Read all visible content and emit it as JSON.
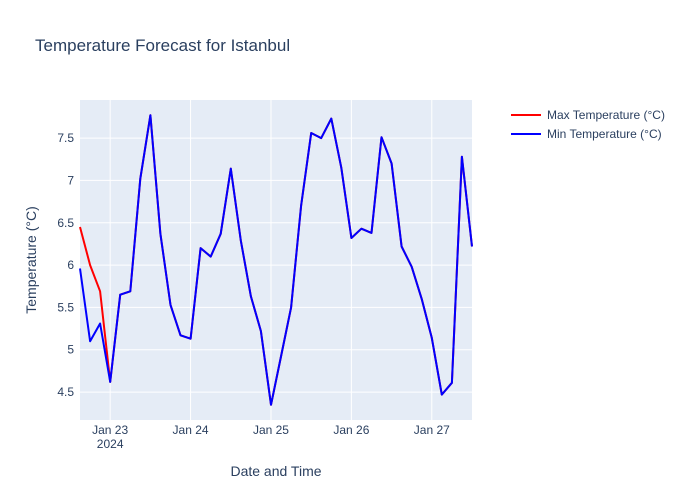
{
  "chart_data": {
    "type": "line",
    "title": "Temperature Forecast for Istanbul",
    "xlabel": "Date and Time",
    "ylabel": "Temperature (°C)",
    "x_tick_labels": [
      {
        "date": "2024-01-23",
        "label": "Jan 23",
        "sublabel": "2024"
      },
      {
        "date": "2024-01-24",
        "label": "Jan 24",
        "sublabel": ""
      },
      {
        "date": "2024-01-25",
        "label": "Jan 25",
        "sublabel": ""
      },
      {
        "date": "2024-01-26",
        "label": "Jan 26",
        "sublabel": ""
      },
      {
        "date": "2024-01-27",
        "label": "Jan 27",
        "sublabel": ""
      }
    ],
    "y_ticks": [
      4.5,
      5,
      5.5,
      6,
      6.5,
      7,
      7.5
    ],
    "y_tick_labels": [
      "4.5",
      "5",
      "5.5",
      "6",
      "6.5",
      "7",
      "7.5"
    ],
    "xlim": [
      "2024-01-22 15:00",
      "2024-01-27 12:00"
    ],
    "ylim": [
      4.17,
      7.95
    ],
    "grid": true,
    "legend_position": "top-right",
    "x": [
      "2024-01-22 15:00",
      "2024-01-22 18:00",
      "2024-01-22 21:00",
      "2024-01-23 00:00",
      "2024-01-23 03:00",
      "2024-01-23 06:00",
      "2024-01-23 09:00",
      "2024-01-23 12:00",
      "2024-01-23 15:00",
      "2024-01-23 18:00",
      "2024-01-23 21:00",
      "2024-01-24 00:00",
      "2024-01-24 03:00",
      "2024-01-24 06:00",
      "2024-01-24 09:00",
      "2024-01-24 12:00",
      "2024-01-24 15:00",
      "2024-01-24 18:00",
      "2024-01-24 21:00",
      "2024-01-25 00:00",
      "2024-01-25 03:00",
      "2024-01-25 06:00",
      "2024-01-25 09:00",
      "2024-01-25 12:00",
      "2024-01-25 15:00",
      "2024-01-25 18:00",
      "2024-01-25 21:00",
      "2024-01-26 00:00",
      "2024-01-26 03:00",
      "2024-01-26 06:00",
      "2024-01-26 09:00",
      "2024-01-26 12:00",
      "2024-01-26 15:00",
      "2024-01-26 18:00",
      "2024-01-26 21:00",
      "2024-01-27 00:00",
      "2024-01-27 03:00",
      "2024-01-27 06:00",
      "2024-01-27 09:00",
      "2024-01-27 12:00"
    ],
    "series": [
      {
        "name": "Max Temperature (°C)",
        "color": "#ff0000",
        "values": [
          6.45,
          6.0,
          5.69,
          4.62,
          5.65,
          5.69,
          7.02,
          7.77,
          6.37,
          5.53,
          5.17,
          5.13,
          6.2,
          6.1,
          6.37,
          7.14,
          6.29,
          5.63,
          5.22,
          4.35,
          4.92,
          5.5,
          6.7,
          7.56,
          7.5,
          7.73,
          7.15,
          6.32,
          6.43,
          6.38,
          7.51,
          7.2,
          6.22,
          5.98,
          5.6,
          5.14,
          4.47,
          4.61,
          7.28,
          6.22
        ]
      },
      {
        "name": "Min Temperature (°C)",
        "color": "#0000ff",
        "values": [
          5.96,
          5.1,
          5.31,
          4.62,
          5.65,
          5.69,
          7.02,
          7.77,
          6.37,
          5.53,
          5.17,
          5.13,
          6.2,
          6.1,
          6.37,
          7.14,
          6.29,
          5.63,
          5.22,
          4.35,
          4.92,
          5.5,
          6.7,
          7.56,
          7.5,
          7.73,
          7.15,
          6.32,
          6.43,
          6.38,
          7.51,
          7.2,
          6.22,
          5.98,
          5.6,
          5.14,
          4.47,
          4.61,
          7.28,
          6.22
        ]
      }
    ]
  },
  "colors": {
    "plot_background": "#e5ecf6",
    "text": "#2a3f5f"
  }
}
